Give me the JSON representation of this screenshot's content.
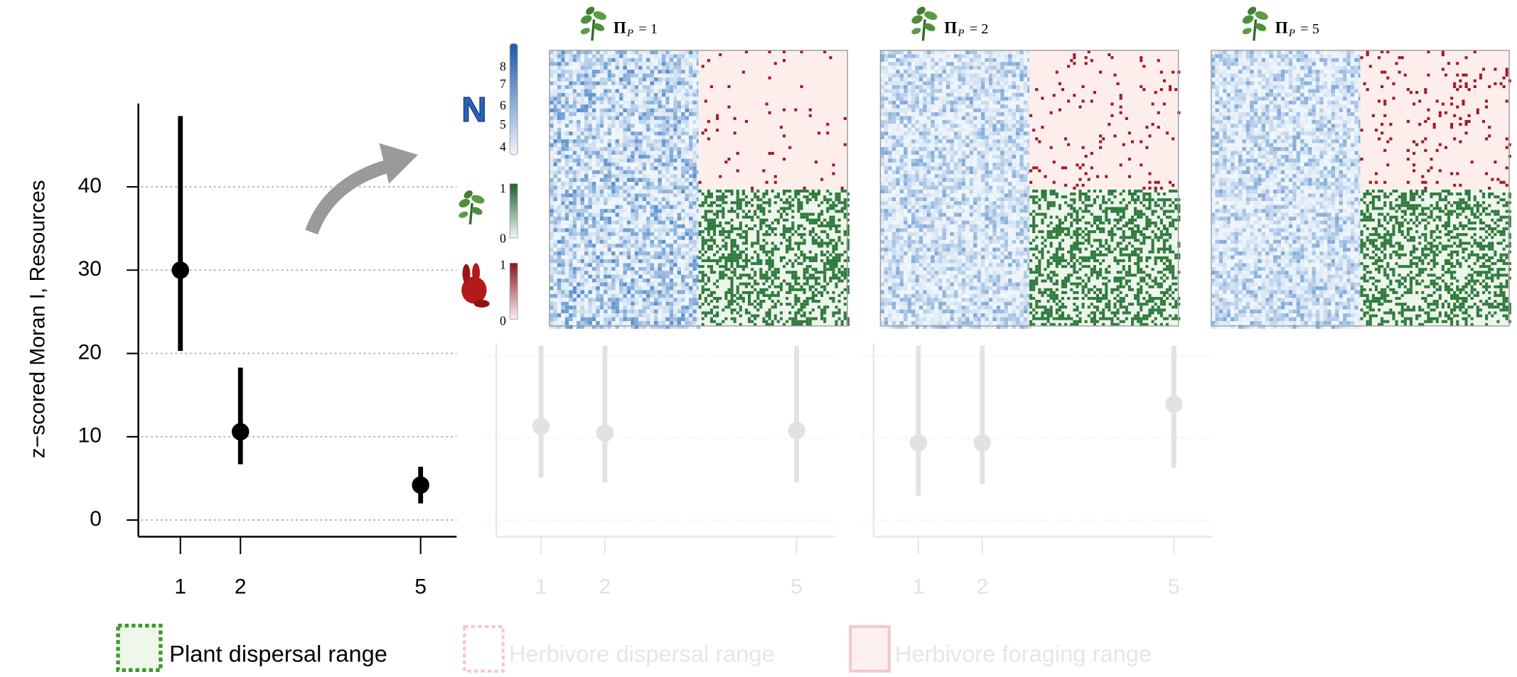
{
  "chart_data": [
    {
      "type": "pointrange",
      "x": [
        1,
        2,
        5
      ],
      "values": [
        30,
        10.6,
        4.2
      ],
      "lower": [
        20.3,
        6.7,
        2
      ],
      "upper": [
        48.5,
        18.3,
        6.4
      ],
      "ylabel": "z−scored Moran I, Resources",
      "xlim": [
        0.3,
        5.6
      ],
      "ylim": [
        -2,
        50
      ],
      "xticks": [
        1,
        2,
        5
      ],
      "yticks": [
        0,
        10,
        20,
        30,
        40
      ],
      "color": "#000000",
      "text_color": "#000000",
      "grid": true,
      "grid_color": "#aaaaaa",
      "ytick_labels": true
    },
    {
      "type": "pointrange",
      "x": [
        1,
        2,
        5
      ],
      "values": [
        11.4,
        10.6,
        10.9
      ],
      "lower": [
        5.2,
        4.6,
        4.6
      ],
      "upper": [
        21.2,
        21.2,
        21.2
      ],
      "xlim": [
        0.3,
        5.6
      ],
      "ylim": [
        -2,
        21.5
      ],
      "xticks": [
        1,
        2,
        5
      ],
      "yticks": [
        0,
        10,
        20
      ],
      "color": "#e2e2e2",
      "text_color": "#e2e2e2",
      "grid": true,
      "grid_color": "#eeeeee",
      "ytick_labels": false
    },
    {
      "type": "pointrange",
      "x": [
        1,
        2,
        5
      ],
      "values": [
        9.4,
        9.4,
        14.1
      ],
      "lower": [
        3.0,
        4.4,
        6.4
      ],
      "upper": [
        21.2,
        21.2,
        21.2
      ],
      "xlim": [
        0.3,
        5.6
      ],
      "ylim": [
        -2,
        21.5
      ],
      "xticks": [
        1,
        2,
        5
      ],
      "yticks": [
        0,
        10,
        20
      ],
      "color": "#e2e2e2",
      "text_color": "#e2e2e2",
      "grid": true,
      "grid_color": "#eeeeee",
      "ytick_labels": false
    }
  ],
  "panels": [
    {
      "symbol": "Π",
      "subscript": "P",
      "text": "= 1"
    },
    {
      "symbol": "Π",
      "subscript": "P",
      "text": "= 2"
    },
    {
      "symbol": "Π",
      "subscript": "P",
      "text": "= 5"
    }
  ],
  "colorbars": [
    {
      "label": "N",
      "ticks": [
        "8",
        "7",
        "6",
        "5",
        "4"
      ]
    },
    {
      "ticks": [
        "1",
        "0"
      ]
    },
    {
      "ticks": [
        "1",
        "0"
      ]
    }
  ],
  "legend": [
    "Plant dispersal range",
    "Herbivore dispersal range",
    "Herbivore foraging range"
  ]
}
